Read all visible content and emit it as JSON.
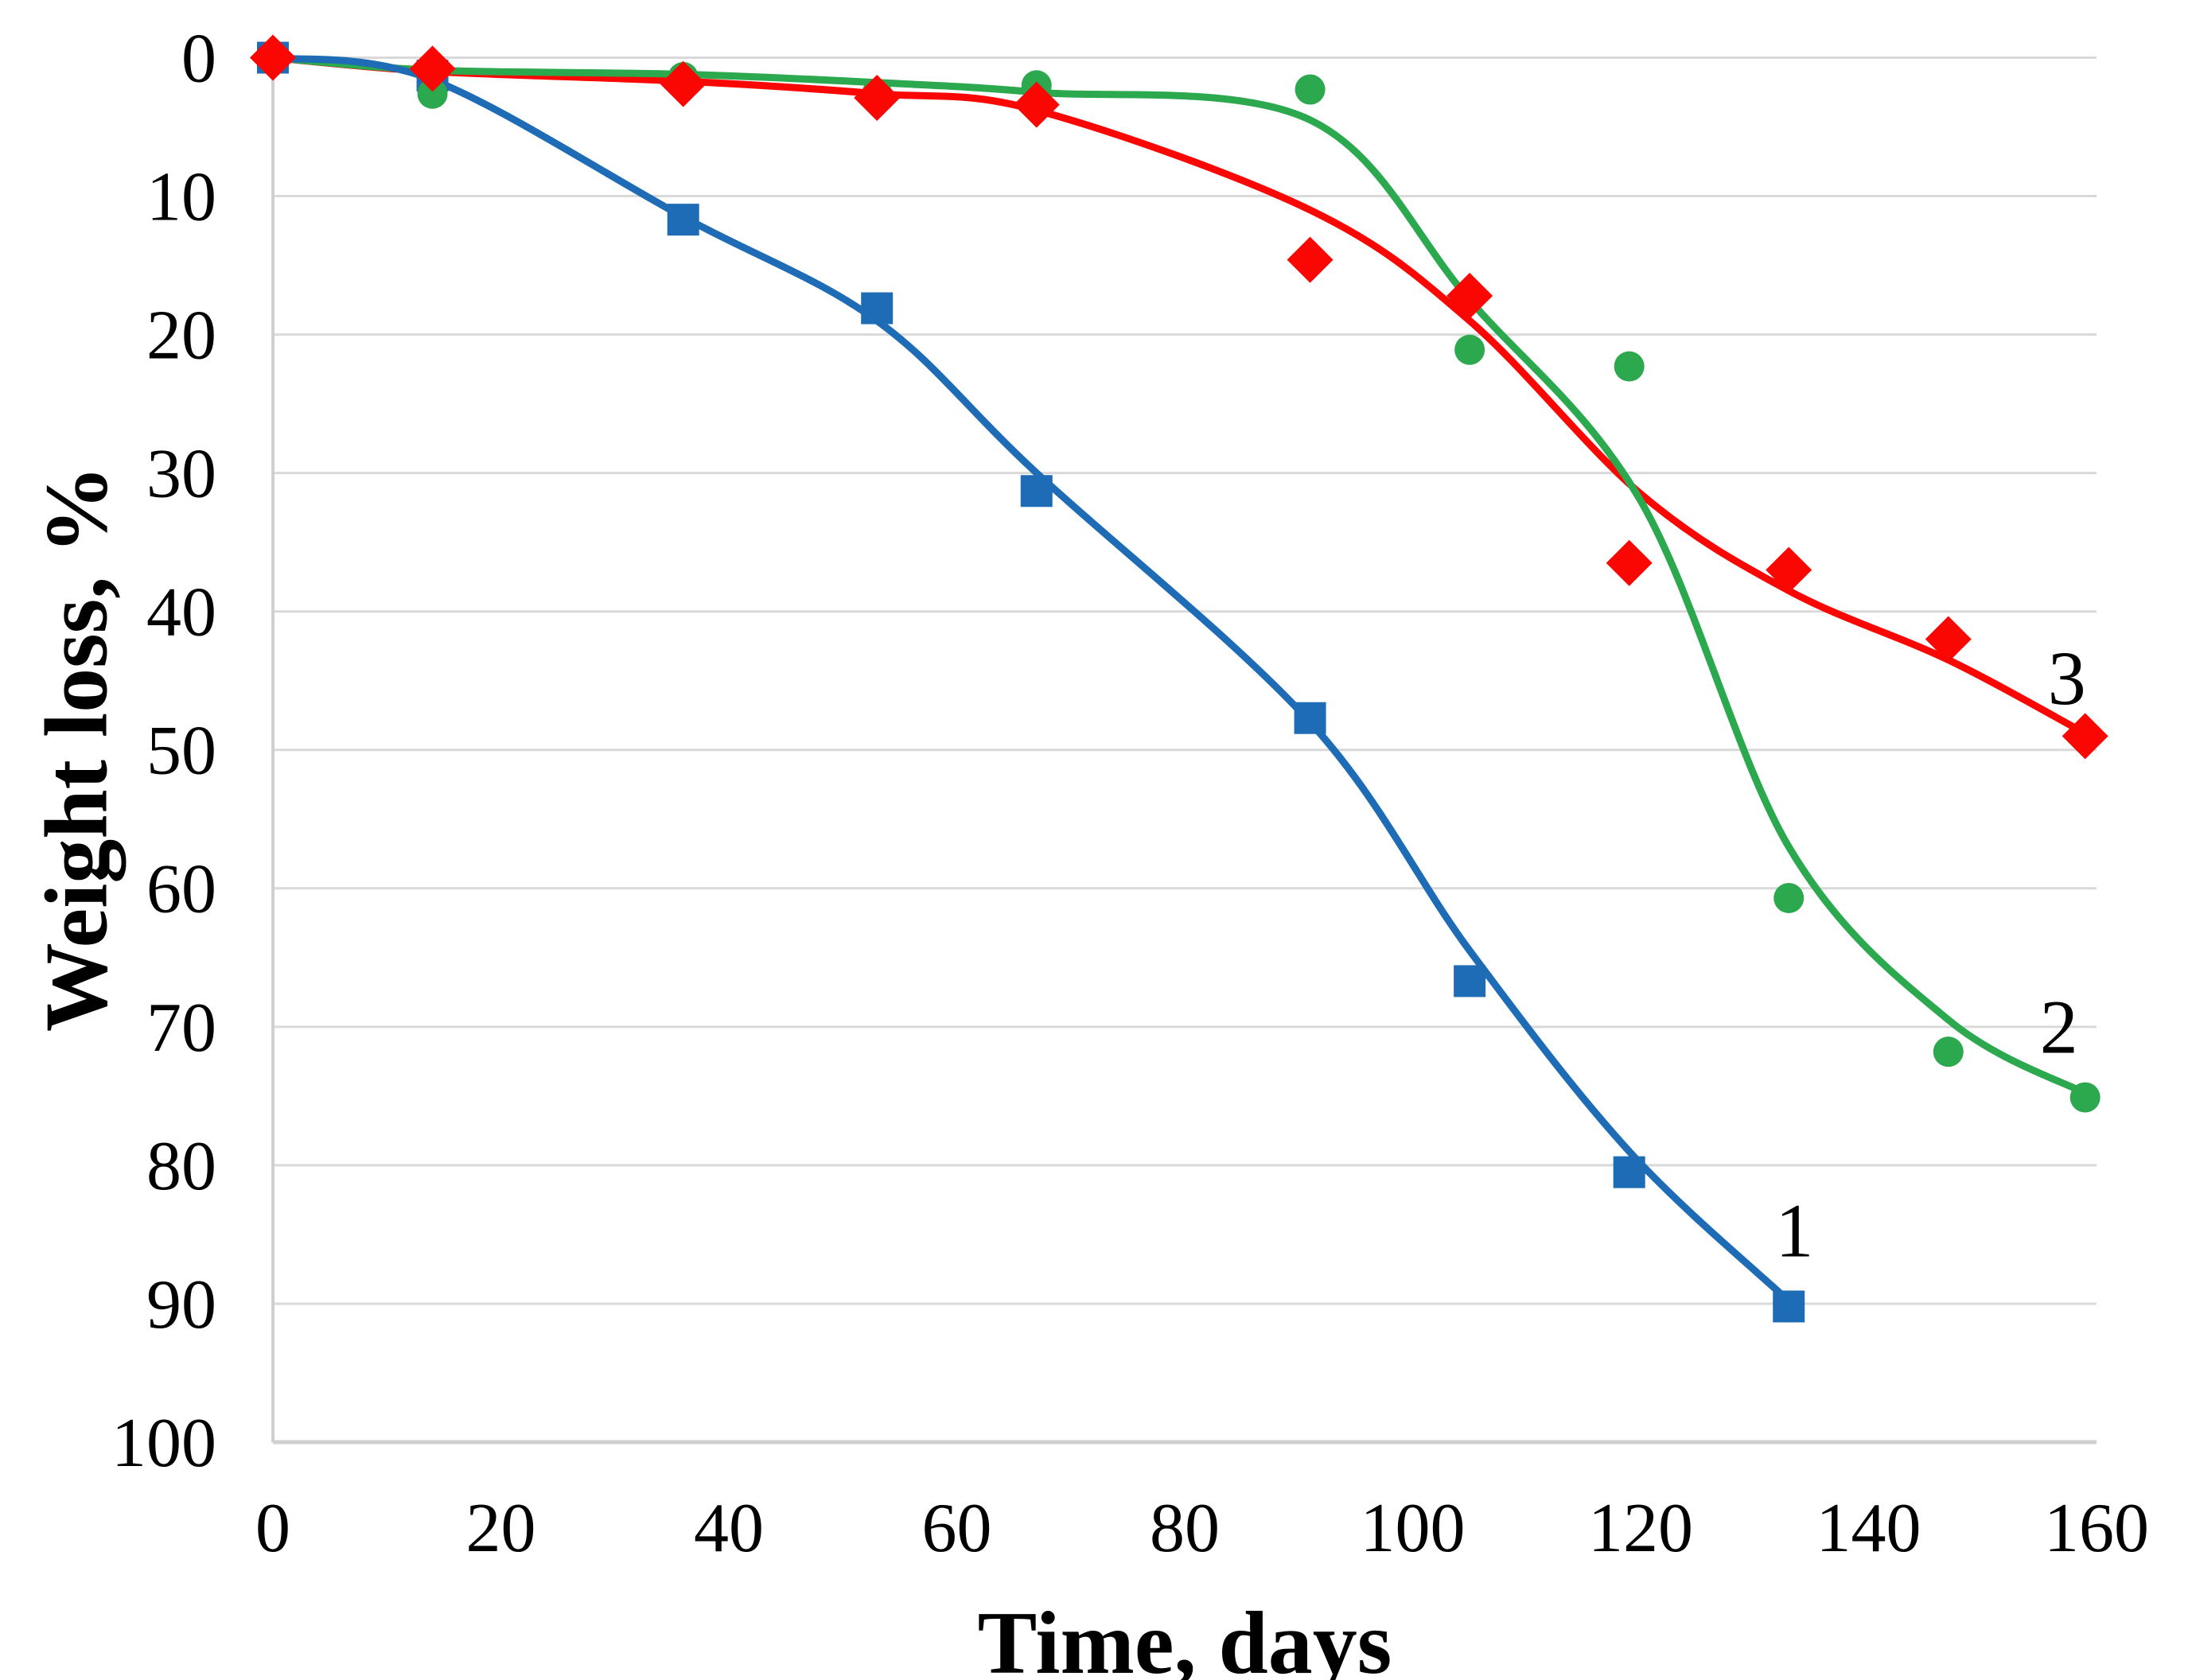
{
  "chart_data": {
    "type": "scatter",
    "title": "",
    "xlabel": "Time, days",
    "ylabel": "Weight loss, %",
    "xlim": [
      0,
      160
    ],
    "ylim": [
      0,
      100
    ],
    "y_axis_inverted_downward": true,
    "xticks": [
      0,
      20,
      40,
      60,
      80,
      100,
      120,
      140,
      160
    ],
    "yticks": [
      0,
      10,
      20,
      30,
      40,
      50,
      60,
      70,
      80,
      90,
      100
    ],
    "grid": "horizontal",
    "grid_color": "#d9d9d9",
    "axis_color": "#cfcfcf",
    "legend_position": "none",
    "series": [
      {
        "name": "1",
        "marker": "square",
        "color": "#1e6cb5",
        "label_pos": {
          "x": 133.5,
          "y": 84.7
        },
        "points": [
          [
            0,
            0
          ],
          [
            14,
            1.3
          ],
          [
            36,
            11.7
          ],
          [
            53,
            18.1
          ],
          [
            67,
            31.3
          ],
          [
            91,
            47.7
          ],
          [
            105,
            66.7
          ],
          [
            119,
            80.5
          ],
          [
            133,
            90.2
          ]
        ],
        "trend": [
          [
            0,
            0
          ],
          [
            14,
            1.6
          ],
          [
            36,
            11.5
          ],
          [
            53,
            19
          ],
          [
            67,
            30
          ],
          [
            91,
            48
          ],
          [
            105,
            64.5
          ],
          [
            119,
            79
          ],
          [
            133,
            89.8
          ]
        ]
      },
      {
        "name": "2",
        "marker": "circle",
        "color": "#2ca84e",
        "label_pos": {
          "x": 156.7,
          "y": 70.0
        },
        "points": [
          [
            0,
            0
          ],
          [
            14,
            2.6
          ],
          [
            36,
            1.4
          ],
          [
            53,
            2.6
          ],
          [
            67,
            2.0
          ],
          [
            91,
            2.3
          ],
          [
            105,
            21.1
          ],
          [
            119,
            22.3
          ],
          [
            133,
            60.7
          ],
          [
            147,
            71.8
          ],
          [
            159,
            75.1
          ]
        ],
        "trend": [
          [
            0,
            0
          ],
          [
            14,
            0.9
          ],
          [
            36,
            1.2
          ],
          [
            53,
            1.8
          ],
          [
            67,
            2.5
          ],
          [
            91,
            4.5
          ],
          [
            105,
            17.5
          ],
          [
            120,
            32
          ],
          [
            133,
            57
          ],
          [
            147,
            69.5
          ],
          [
            159,
            74.8
          ]
        ]
      },
      {
        "name": "3",
        "marker": "diamond",
        "color": "#fa0603",
        "label_pos": {
          "x": 157.4,
          "y": 44.8
        },
        "points": [
          [
            0,
            0
          ],
          [
            14,
            0.8
          ],
          [
            36,
            1.9
          ],
          [
            53,
            2.9
          ],
          [
            67,
            3.4
          ],
          [
            91,
            14.6
          ],
          [
            105,
            17.2
          ],
          [
            119,
            36.5
          ],
          [
            133,
            37.0
          ],
          [
            147,
            42.0
          ],
          [
            159,
            49.0
          ]
        ],
        "trend": [
          [
            0,
            0
          ],
          [
            14,
            1.0
          ],
          [
            36,
            1.7
          ],
          [
            53,
            2.6
          ],
          [
            67,
            3.8
          ],
          [
            91,
            11
          ],
          [
            105,
            19
          ],
          [
            120,
            31.5
          ],
          [
            133,
            38.5
          ],
          [
            147,
            43.5
          ],
          [
            159,
            48.8
          ]
        ]
      }
    ]
  }
}
